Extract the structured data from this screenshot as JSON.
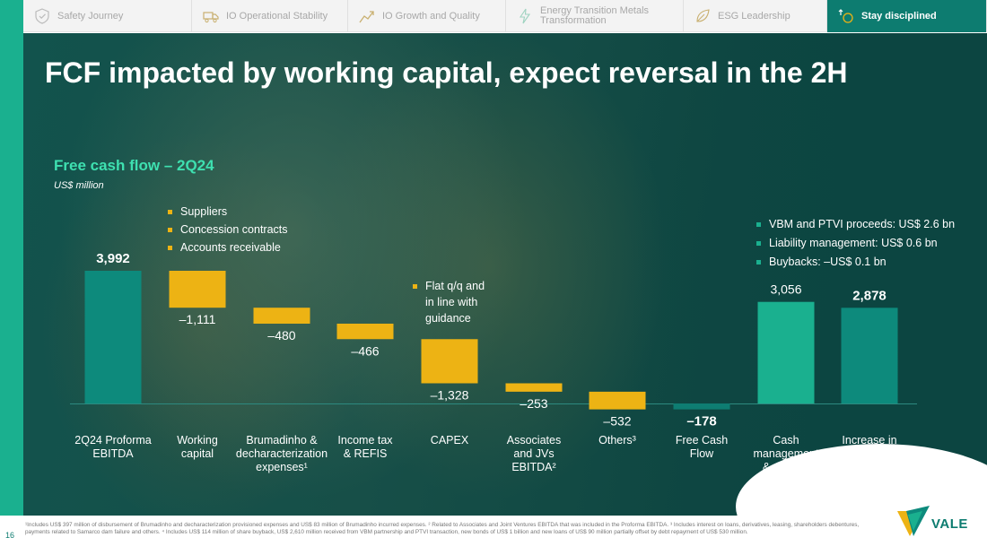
{
  "nav": {
    "tabs": [
      {
        "label": "Safety Journey",
        "icon": "shield-check-icon",
        "active": false,
        "width": 188
      },
      {
        "label": "IO Operational Stability",
        "icon": "truck-icon",
        "active": false,
        "width": 174
      },
      {
        "label": "IO Growth and Quality",
        "icon": "chart-growth-icon",
        "active": false,
        "width": 176
      },
      {
        "label": "Energy Transition Metals\nTransformation",
        "icon": "lightning-icon",
        "active": false,
        "width": 198
      },
      {
        "label": "ESG Leadership",
        "icon": "leaf-icon",
        "active": false,
        "width": 160
      },
      {
        "label": "Stay disciplined",
        "icon": "coin-arrows-icon",
        "active": true,
        "width": 178
      }
    ]
  },
  "page_number": "16",
  "slide": {
    "title": "FCF impacted by working capital, expect reversal in the 2H"
  },
  "chart_data": {
    "type": "bar",
    "subtype": "waterfall",
    "title": "Free cash flow – 2Q24",
    "ylabel": "US$ million",
    "categories": [
      "2Q24 Proforma\nEBITDA",
      "Working\ncapital",
      "Brumadinho &\ndecharacterization\nexpenses¹",
      "Income tax\n& REFIS",
      "CAPEX",
      "Associates\nand JVs\nEBITDA²",
      "Others³",
      "Free Cash\nFlow",
      "Cash\nmanagement\n& others⁴",
      "Increase in\ncash and cash\nequivalents"
    ],
    "values": [
      3992,
      -1111,
      -480,
      -466,
      -1328,
      -253,
      -532,
      -178,
      3056,
      2878
    ],
    "value_labels": [
      "3,992",
      "–1,111",
      "–480",
      "–466",
      "–1,328",
      "–253",
      "–532",
      "–178",
      "3,056",
      "2,878"
    ],
    "bar_kinds": [
      "total",
      "delta",
      "delta",
      "delta",
      "delta",
      "delta",
      "delta",
      "total",
      "delta",
      "total"
    ],
    "bold_labels": [
      true,
      false,
      false,
      false,
      false,
      false,
      false,
      true,
      false,
      true
    ],
    "colors": {
      "total": "#0d8a7c",
      "negative": "#edb314",
      "positive": "#1ab08f",
      "fcf": "#0e7d72",
      "baseline": "#2d8a80"
    },
    "annotations": [
      {
        "id": "working-capital-notes",
        "items": [
          "Suppliers",
          "Concession contracts",
          "Accounts receivable"
        ],
        "color": "#edb314"
      },
      {
        "id": "capex-note",
        "items": [
          "Flat q/q and\nin line with\nguidance"
        ],
        "color": "#edb314"
      },
      {
        "id": "cash-management-notes",
        "items": [
          "VBM and PTVI proceeds: US$ 2.6 bn",
          "Liability management: US$ 0.6 bn",
          "Buybacks: –US$ 0.1 bn"
        ],
        "color": "#1ab08f"
      }
    ]
  },
  "footnote": "¹Includes US$ 397 million of disbursement of Brumadinho and decharacterization provisioned expenses and US$ 83 million of Brumadinho incurred expenses. ² Related to Associates and Joint Ventures EBITDA that was included in the Proforma EBITDA. ³ Includes interest on loans, derivatives, leasing, shareholders debentures, payments related to Samarco dam failure and others.  ⁴ Includes US$ 114 million of share buyback, US$ 2,610 million received from VBM partnership and PTVI transaction, new bonds of US$ 1 billion and new loans of US$ 90 million partially offset by debt repayment of US$ 530 million.",
  "logo": {
    "text": "VALE"
  }
}
